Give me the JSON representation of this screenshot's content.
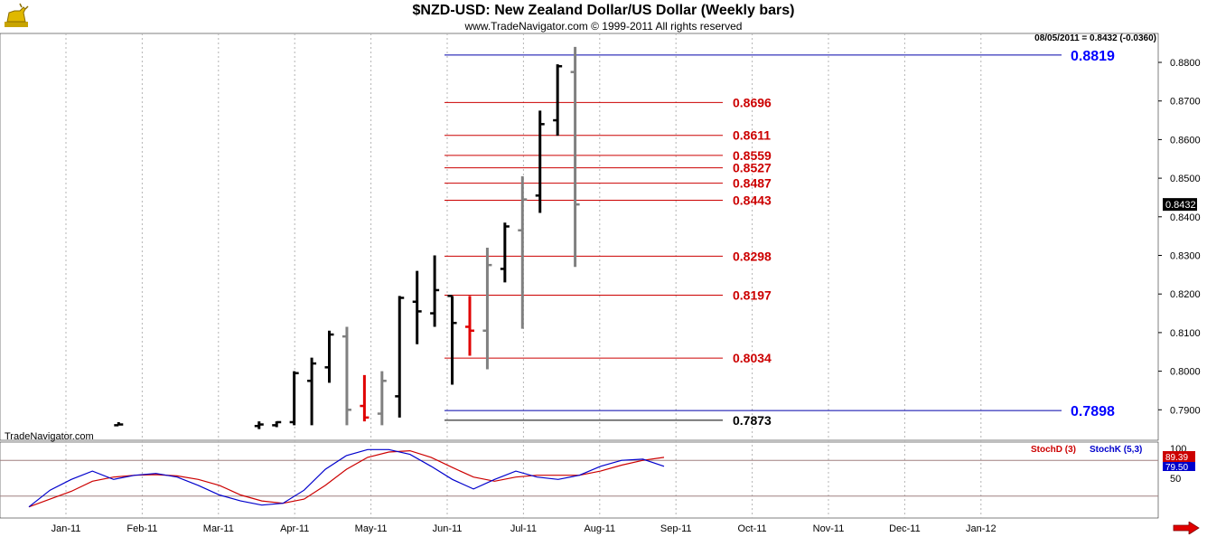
{
  "header": {
    "title": "$NZD-USD:  New Zealand Dollar/US Dollar  (Weekly bars)",
    "copyright": "www.TradeNavigator.com © 1999-2011 All rights reserved",
    "readout": "08/05/2011 = 0.8432 (-0.0360)",
    "watermark": "TradeNavigator.com"
  },
  "icons": {
    "logo": "bull-logo-icon",
    "scroll": "right-arrow-icon"
  },
  "colors": {
    "up_bar": "#000000",
    "neutral_bar": "#808080",
    "down_bar": "#e00000",
    "fib_line": "#cc0000",
    "trend_line": "#0000aa",
    "stoch_d": "#cc0000",
    "stoch_k": "#0000cc"
  },
  "stoch_legend": {
    "d_label": "StochD (3)",
    "k_label": "StochK (5,3)",
    "d_value": "89.39",
    "k_value": "79.50"
  },
  "chart_data": {
    "type": "ohlc",
    "x_labels": [
      "Jan-11",
      "Feb-11",
      "Mar-11",
      "Apr-11",
      "May-11",
      "Jun-11",
      "Jul-11",
      "Aug-11",
      "Sep-11",
      "Oct-11",
      "Nov-11",
      "Dec-11",
      "Jan-12"
    ],
    "y_ticks": [
      "0.8800",
      "0.8700",
      "0.8600",
      "0.8500",
      "0.8400",
      "0.8300",
      "0.8200",
      "0.8100",
      "0.8000",
      "0.7900"
    ],
    "ylim": [
      0.786,
      0.89
    ],
    "last_price_label": "0.8432",
    "bars": [
      {
        "date": "2011-02-04",
        "open": 0.786,
        "high": 0.7868,
        "low": 0.786,
        "close": 0.7862,
        "color": "up"
      },
      {
        "date": "2011-04-01",
        "open": 0.7858,
        "high": 0.787,
        "low": 0.785,
        "close": 0.7862,
        "color": "up"
      },
      {
        "date": "2011-04-08",
        "open": 0.786,
        "high": 0.787,
        "low": 0.7855,
        "close": 0.7868,
        "color": "up"
      },
      {
        "date": "2011-04-15",
        "open": 0.7868,
        "high": 0.8,
        "low": 0.786,
        "close": 0.7995,
        "color": "up"
      },
      {
        "date": "2011-04-22",
        "open": 0.7975,
        "high": 0.8035,
        "low": 0.786,
        "close": 0.802,
        "color": "up"
      },
      {
        "date": "2011-04-29",
        "open": 0.801,
        "high": 0.8105,
        "low": 0.797,
        "close": 0.8095,
        "color": "up"
      },
      {
        "date": "2011-05-06",
        "open": 0.809,
        "high": 0.8115,
        "low": 0.786,
        "close": 0.79,
        "color": "neutral"
      },
      {
        "date": "2011-05-13",
        "open": 0.791,
        "high": 0.799,
        "low": 0.787,
        "close": 0.788,
        "color": "down"
      },
      {
        "date": "2011-05-20",
        "open": 0.789,
        "high": 0.8,
        "low": 0.786,
        "close": 0.7975,
        "color": "neutral"
      },
      {
        "date": "2011-05-27",
        "open": 0.7935,
        "high": 0.8195,
        "low": 0.788,
        "close": 0.819,
        "color": "up"
      },
      {
        "date": "2011-06-03",
        "open": 0.818,
        "high": 0.826,
        "low": 0.807,
        "close": 0.8155,
        "color": "up"
      },
      {
        "date": "2011-06-10",
        "open": 0.815,
        "high": 0.83,
        "low": 0.8115,
        "close": 0.821,
        "color": "up"
      },
      {
        "date": "2011-06-17",
        "open": 0.8195,
        "high": 0.8195,
        "low": 0.7965,
        "close": 0.8125,
        "color": "up"
      },
      {
        "date": "2011-06-24",
        "open": 0.8115,
        "high": 0.8195,
        "low": 0.804,
        "close": 0.8105,
        "color": "down"
      },
      {
        "date": "2011-07-01",
        "open": 0.8105,
        "high": 0.832,
        "low": 0.8005,
        "close": 0.8275,
        "color": "neutral"
      },
      {
        "date": "2011-07-08",
        "open": 0.8265,
        "high": 0.8385,
        "low": 0.823,
        "close": 0.8375,
        "color": "up"
      },
      {
        "date": "2011-07-15",
        "open": 0.8365,
        "high": 0.8505,
        "low": 0.811,
        "close": 0.8445,
        "color": "neutral"
      },
      {
        "date": "2011-07-22",
        "open": 0.8455,
        "high": 0.8675,
        "low": 0.841,
        "close": 0.864,
        "color": "up"
      },
      {
        "date": "2011-07-29",
        "open": 0.865,
        "high": 0.8795,
        "low": 0.861,
        "close": 0.879,
        "color": "up"
      },
      {
        "date": "2011-08-05",
        "open": 0.8775,
        "high": 0.884,
        "low": 0.827,
        "close": 0.8432,
        "color": "neutral"
      }
    ],
    "fib_levels": [
      "0.8696",
      "0.8611",
      "0.8559",
      "0.8527",
      "0.8487",
      "0.8443",
      "0.8298",
      "0.8197",
      "0.8034"
    ],
    "trend_levels": [
      "0.8819",
      "0.7898"
    ],
    "marker_level": "0.7873",
    "stoch": {
      "y_ticks": [
        "100",
        "50"
      ],
      "ylim": [
        0,
        100
      ],
      "reference_lines": [
        80,
        20
      ],
      "k": [
        2,
        30,
        48,
        62,
        48,
        55,
        58,
        52,
        38,
        22,
        12,
        5,
        8,
        30,
        65,
        88,
        98,
        98,
        90,
        70,
        48,
        32,
        48,
        62,
        52,
        48,
        55,
        70,
        80,
        82,
        70
      ],
      "d": [
        2,
        15,
        28,
        45,
        52,
        55,
        56,
        54,
        48,
        38,
        22,
        12,
        8,
        15,
        38,
        65,
        85,
        94,
        96,
        85,
        68,
        52,
        45,
        52,
        55,
        55,
        55,
        62,
        72,
        80,
        85
      ]
    }
  }
}
